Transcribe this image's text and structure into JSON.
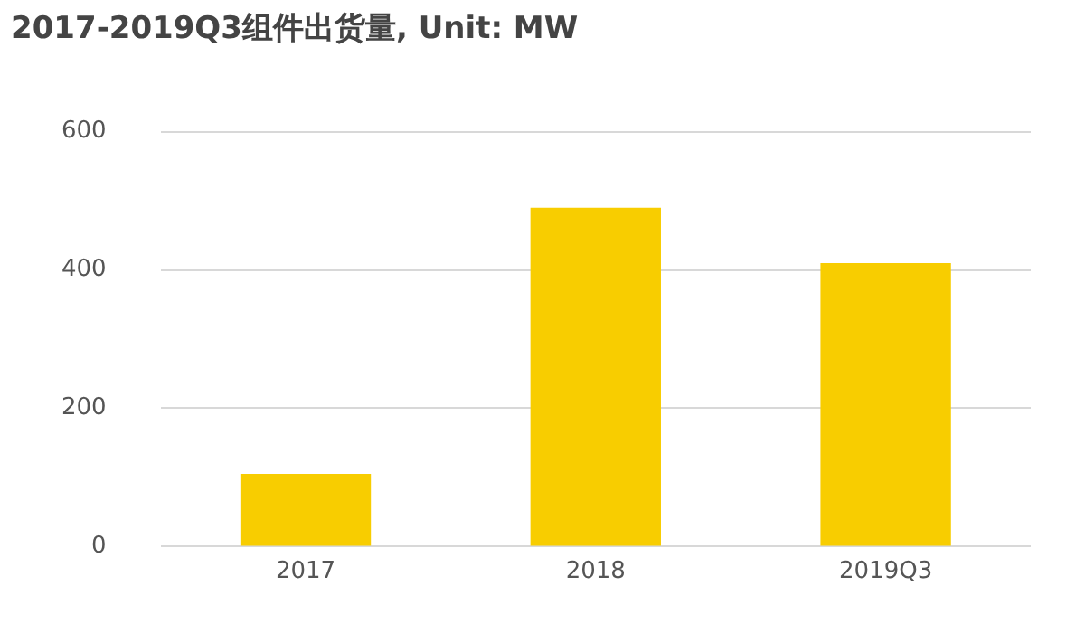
{
  "chart_data": {
    "type": "bar",
    "title": "2017-2019Q3组件出货量, Unit: MW",
    "categories": [
      "2017",
      "2018",
      "2019Q3"
    ],
    "values": [
      105,
      490,
      410
    ],
    "color": "#f8cd00",
    "ylim": [
      0,
      600
    ],
    "yticks": [
      0,
      200,
      400,
      600
    ],
    "grid": "y"
  }
}
